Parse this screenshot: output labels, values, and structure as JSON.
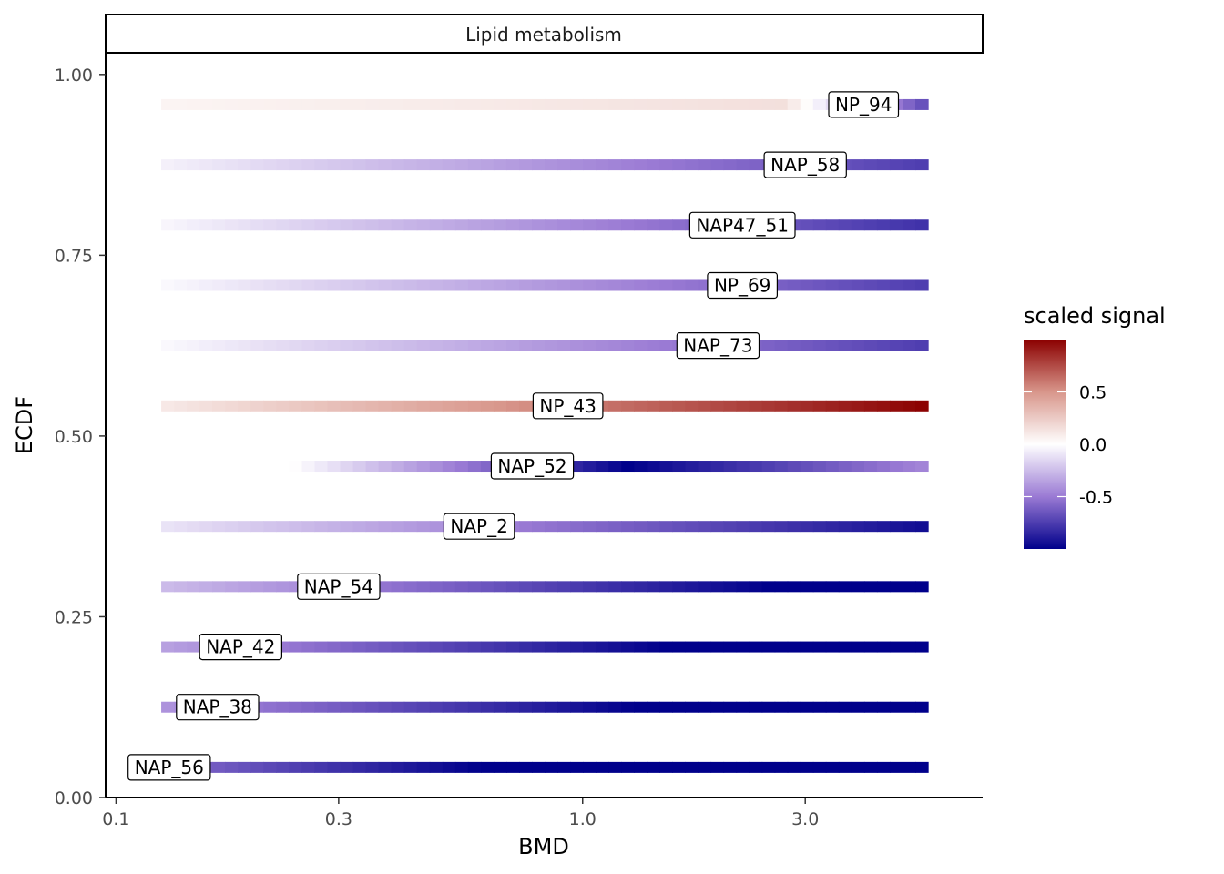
{
  "chart_data": {
    "type": "heatmap",
    "facet_title": "Lipid metabolism",
    "xlabel": "BMD",
    "ylabel": "ECDF",
    "x_scale": "log10",
    "xlim": [
      0.095,
      7.2
    ],
    "ylim": [
      0,
      1.03
    ],
    "x_ticks": [
      0.1,
      0.3,
      1.0,
      3.0
    ],
    "x_tick_labels": [
      "0.1",
      "0.3",
      "1.0",
      "3.0"
    ],
    "y_ticks": [
      0.0,
      0.25,
      0.5,
      0.75,
      1.0
    ],
    "y_tick_labels": [
      "0.00",
      "0.25",
      "0.50",
      "0.75",
      "1.00"
    ],
    "grid": false,
    "x_range_of_tiles": [
      0.125,
      5.5
    ],
    "legend": {
      "title": "scaled signal",
      "placement": "right",
      "range": [
        -1,
        1
      ],
      "ticks": [
        0.5,
        0.0,
        -0.5
      ],
      "tick_labels": [
        "0.5",
        "0.0",
        "-0.5"
      ],
      "colors": {
        "low": "#00008b",
        "mid": "#ffffff",
        "high": "#8b0000"
      }
    },
    "series": [
      {
        "name": "NAP_56",
        "ecdf": 0.0417,
        "bmd": 0.13,
        "start_signal": -0.55,
        "start_x": 0.125,
        "peak_signal": -1.0,
        "peak_x": 0.6,
        "end_signal": -1.0
      },
      {
        "name": "NAP_38",
        "ecdf": 0.125,
        "bmd": 0.165,
        "start_signal": -0.4,
        "start_x": 0.125,
        "peak_signal": -1.0,
        "peak_x": 1.3,
        "end_signal": -1.0
      },
      {
        "name": "NAP_42",
        "ecdf": 0.2083,
        "bmd": 0.185,
        "start_signal": -0.35,
        "start_x": 0.125,
        "peak_signal": -1.0,
        "peak_x": 1.5,
        "end_signal": -1.0
      },
      {
        "name": "NAP_54",
        "ecdf": 0.2917,
        "bmd": 0.3,
        "start_signal": -0.25,
        "start_x": 0.125,
        "peak_signal": -1.0,
        "peak_x": 2.5,
        "end_signal": -1.0
      },
      {
        "name": "NAP_2",
        "ecdf": 0.375,
        "bmd": 0.6,
        "start_signal": -0.1,
        "start_x": 0.125,
        "peak_signal": -0.95,
        "peak_x": 5.5,
        "end_signal": -0.95
      },
      {
        "name": "NAP_52",
        "ecdf": 0.4583,
        "bmd": 0.78,
        "start_signal": 0.0,
        "start_x": 0.24,
        "peak_signal": -1.0,
        "peak_x": 1.25,
        "end_signal": -0.45
      },
      {
        "name": "NP_43",
        "ecdf": 0.5417,
        "bmd": 0.93,
        "start_signal": 0.1,
        "start_x": 0.125,
        "peak_signal": 1.0,
        "peak_x": 5.5,
        "end_signal": 1.0
      },
      {
        "name": "NAP_73",
        "ecdf": 0.625,
        "bmd": 1.95,
        "start_signal": -0.02,
        "start_x": 0.125,
        "peak_signal": -0.75,
        "peak_x": 5.5,
        "end_signal": -0.75
      },
      {
        "name": "NP_69",
        "ecdf": 0.7083,
        "bmd": 2.2,
        "start_signal": -0.02,
        "start_x": 0.125,
        "peak_signal": -0.75,
        "peak_x": 5.5,
        "end_signal": -0.75
      },
      {
        "name": "NAP47_51",
        "ecdf": 0.7917,
        "bmd": 2.2,
        "start_signal": -0.03,
        "start_x": 0.125,
        "peak_signal": -0.8,
        "peak_x": 5.5,
        "end_signal": -0.8
      },
      {
        "name": "NAP_58",
        "ecdf": 0.875,
        "bmd": 3.0,
        "start_signal": -0.05,
        "start_x": 0.125,
        "peak_signal": -0.75,
        "peak_x": 5.5,
        "end_signal": -0.75
      },
      {
        "name": "NP_94",
        "ecdf": 0.9583,
        "bmd": 4.0,
        "start_signal": 0.05,
        "start_x": 0.125,
        "peak_signal": 0.15,
        "peak_x": 2.7,
        "end_signal": -0.7
      }
    ]
  }
}
